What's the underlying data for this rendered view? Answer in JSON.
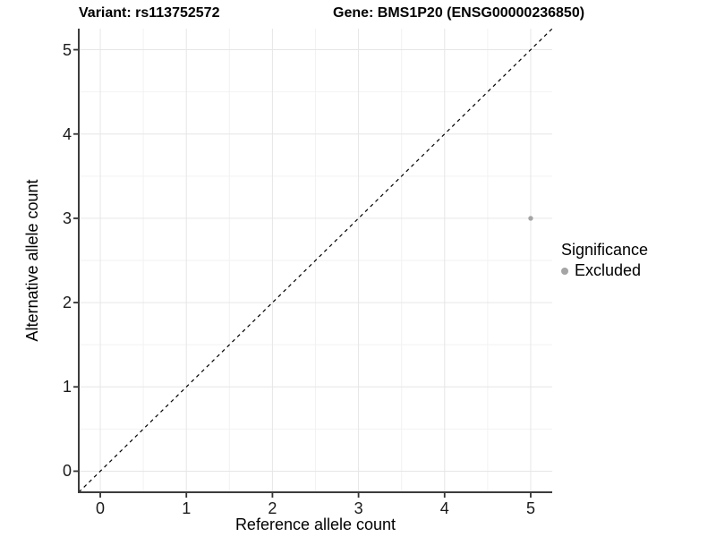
{
  "chart_data": {
    "type": "scatter",
    "title_left": "Variant: rs113752572",
    "title_right": "Gene: BMS1P20 (ENSG00000236850)",
    "xlabel": "Reference allele count",
    "ylabel": "Alternative allele count",
    "xlim": [
      -0.25,
      5.25
    ],
    "ylim": [
      -0.25,
      5.25
    ],
    "x_ticks": [
      0,
      1,
      2,
      3,
      4,
      5
    ],
    "y_ticks": [
      0,
      1,
      2,
      3,
      4,
      5
    ],
    "grid": {
      "major": true,
      "minor": true
    },
    "identity_line": {
      "style": "dashed",
      "slope": 1,
      "intercept": 0,
      "color": "#000000"
    },
    "points": [
      {
        "x": 5,
        "y": 3,
        "series": "Excluded",
        "color": "#a5a5a5"
      }
    ],
    "legend": {
      "title": "Significance",
      "position": "right",
      "items": [
        {
          "label": "Excluded",
          "color": "#a5a5a5"
        }
      ]
    }
  },
  "colors": {
    "background": "#ffffff",
    "grid_major": "#e6e6e6",
    "grid_minor": "#f2f2f2",
    "axis_line": "#3c3c3c",
    "tick_mark": "#333333",
    "tick_label": "#1a1a1a",
    "title_text": "#000000"
  }
}
